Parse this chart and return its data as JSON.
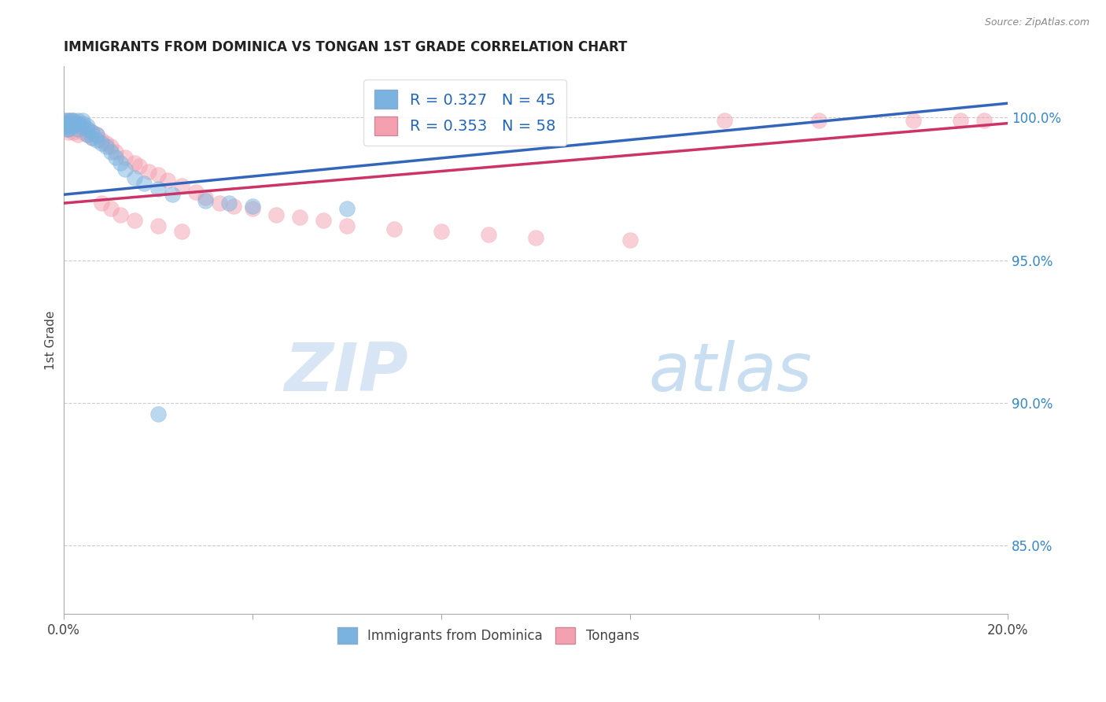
{
  "title": "IMMIGRANTS FROM DOMINICA VS TONGAN 1ST GRADE CORRELATION CHART",
  "source": "Source: ZipAtlas.com",
  "ylabel": "1st Grade",
  "right_ytick_labels": [
    "100.0%",
    "95.0%",
    "90.0%",
    "85.0%"
  ],
  "right_ytick_values": [
    1.0,
    0.95,
    0.9,
    0.85
  ],
  "watermark_zip": "ZIP",
  "watermark_atlas": "atlas",
  "legend_r1": "R = 0.327",
  "legend_n1": "N = 45",
  "legend_r2": "R = 0.353",
  "legend_n2": "N = 58",
  "legend_label1": "Immigrants from Dominica",
  "legend_label2": "Tongans",
  "blue_color": "#7ab3e0",
  "pink_color": "#f4a0b0",
  "blue_line_color": "#3366bb",
  "pink_line_color": "#cc3366",
  "xlim": [
    0.0,
    0.2
  ],
  "ylim": [
    0.826,
    1.018
  ],
  "dominica_x": [
    0.0002,
    0.0003,
    0.0004,
    0.0005,
    0.0006,
    0.0007,
    0.0008,
    0.001,
    0.001,
    0.001,
    0.001,
    0.0015,
    0.0015,
    0.002,
    0.002,
    0.002,
    0.0025,
    0.003,
    0.003,
    0.003,
    0.0035,
    0.004,
    0.004,
    0.005,
    0.005,
    0.005,
    0.006,
    0.006,
    0.007,
    0.007,
    0.008,
    0.009,
    0.01,
    0.011,
    0.012,
    0.013,
    0.015,
    0.017,
    0.02,
    0.023,
    0.03,
    0.035,
    0.04,
    0.06,
    0.02
  ],
  "dominica_y": [
    0.999,
    0.998,
    0.998,
    0.997,
    0.997,
    0.997,
    0.996,
    0.999,
    0.998,
    0.997,
    0.996,
    0.999,
    0.998,
    0.999,
    0.998,
    0.997,
    0.998,
    0.999,
    0.998,
    0.996,
    0.997,
    0.999,
    0.998,
    0.997,
    0.996,
    0.994,
    0.995,
    0.993,
    0.994,
    0.992,
    0.991,
    0.99,
    0.988,
    0.986,
    0.984,
    0.982,
    0.979,
    0.977,
    0.975,
    0.973,
    0.971,
    0.97,
    0.969,
    0.968,
    0.896
  ],
  "tongan_x": [
    0.0002,
    0.0003,
    0.0005,
    0.0007,
    0.001,
    0.001,
    0.001,
    0.001,
    0.0015,
    0.002,
    0.002,
    0.002,
    0.003,
    0.003,
    0.003,
    0.004,
    0.004,
    0.005,
    0.005,
    0.006,
    0.006,
    0.007,
    0.008,
    0.009,
    0.01,
    0.011,
    0.013,
    0.015,
    0.016,
    0.018,
    0.02,
    0.022,
    0.025,
    0.028,
    0.03,
    0.033,
    0.036,
    0.04,
    0.045,
    0.05,
    0.055,
    0.06,
    0.07,
    0.08,
    0.09,
    0.1,
    0.12,
    0.14,
    0.16,
    0.18,
    0.19,
    0.195,
    0.008,
    0.01,
    0.012,
    0.015,
    0.02,
    0.025
  ],
  "tongan_y": [
    0.999,
    0.998,
    0.997,
    0.996,
    0.999,
    0.998,
    0.997,
    0.995,
    0.998,
    0.999,
    0.997,
    0.995,
    0.998,
    0.996,
    0.994,
    0.997,
    0.995,
    0.996,
    0.994,
    0.995,
    0.993,
    0.994,
    0.992,
    0.991,
    0.99,
    0.988,
    0.986,
    0.984,
    0.983,
    0.981,
    0.98,
    0.978,
    0.976,
    0.974,
    0.972,
    0.97,
    0.969,
    0.968,
    0.966,
    0.965,
    0.964,
    0.962,
    0.961,
    0.96,
    0.959,
    0.958,
    0.957,
    0.999,
    0.999,
    0.999,
    0.999,
    0.999,
    0.97,
    0.968,
    0.966,
    0.964,
    0.962,
    0.96
  ]
}
